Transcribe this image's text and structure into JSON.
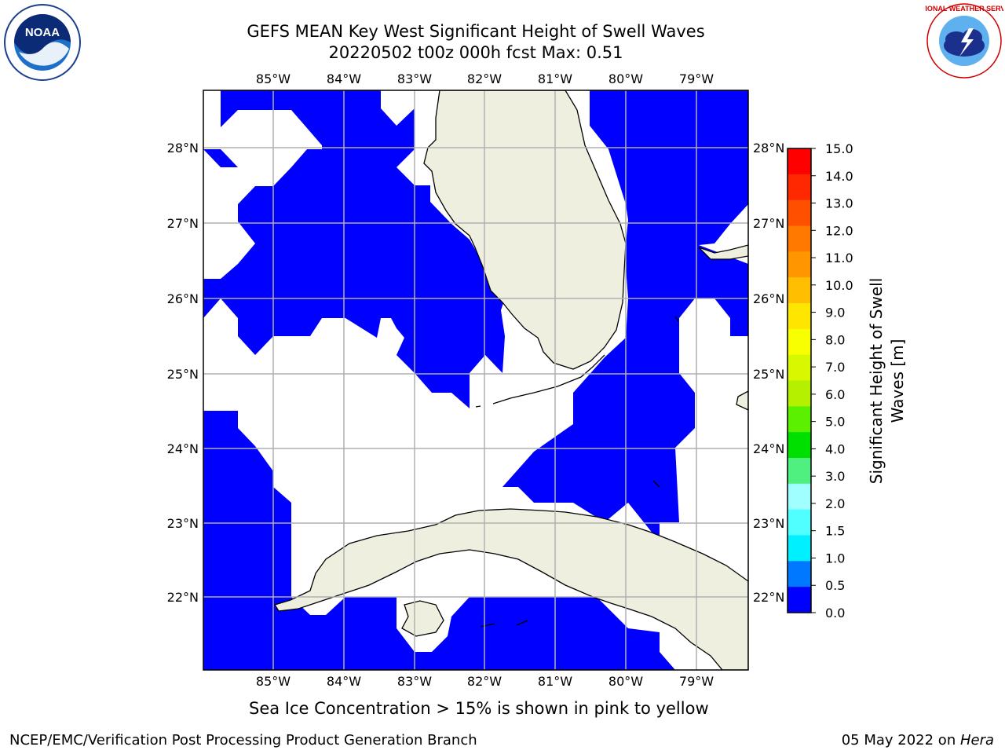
{
  "title": {
    "line1": "GEFS MEAN Key West Significant Height of Swell Waves",
    "line2": "20220502 t00z 000h fcst   Max: 0.51"
  },
  "logos": {
    "left": {
      "name": "noaa-logo",
      "text": "NOAA"
    },
    "right": {
      "name": "nws-logo",
      "text": "NATIONAL WEATHER SERVICE"
    }
  },
  "map": {
    "lon_labels": [
      "85°W",
      "84°W",
      "83°W",
      "82°W",
      "81°W",
      "80°W",
      "79°W"
    ],
    "lat_labels": [
      "28°N",
      "27°N",
      "26°N",
      "25°N",
      "24°N",
      "23°N",
      "22°N"
    ],
    "ocean_color": "#0000ff",
    "land_color": "#efefdf",
    "grid_color": "#b0b0b0"
  },
  "colorbar": {
    "title_line1": "Significant Height of Swell",
    "title_line2": "Waves [m]",
    "ticks": [
      "15.0",
      "14.0",
      "13.0",
      "12.0",
      "11.0",
      "10.0",
      "9.0",
      "8.0",
      "7.0",
      "6.0",
      "5.0",
      "4.0",
      "3.0",
      "2.0",
      "1.5",
      "1.0",
      "0.5",
      "0.0"
    ],
    "colors_top_to_bottom": [
      "#ff0000",
      "#ff2800",
      "#ff5000",
      "#ff7800",
      "#ff9600",
      "#ffbe00",
      "#ffe600",
      "#f8ff00",
      "#d8f800",
      "#b4f000",
      "#5af000",
      "#00e000",
      "#50f080",
      "#a0ffff",
      "#50ffff",
      "#00f0ff",
      "#0078ff",
      "#0000ff"
    ]
  },
  "footer": {
    "note": "Sea Ice Concentration > 15% is shown in pink to yellow",
    "credit": "NCEP/EMC/Verification Post Processing Product Generation Branch",
    "date": "05 May 2022 on ",
    "host": "Hera"
  }
}
